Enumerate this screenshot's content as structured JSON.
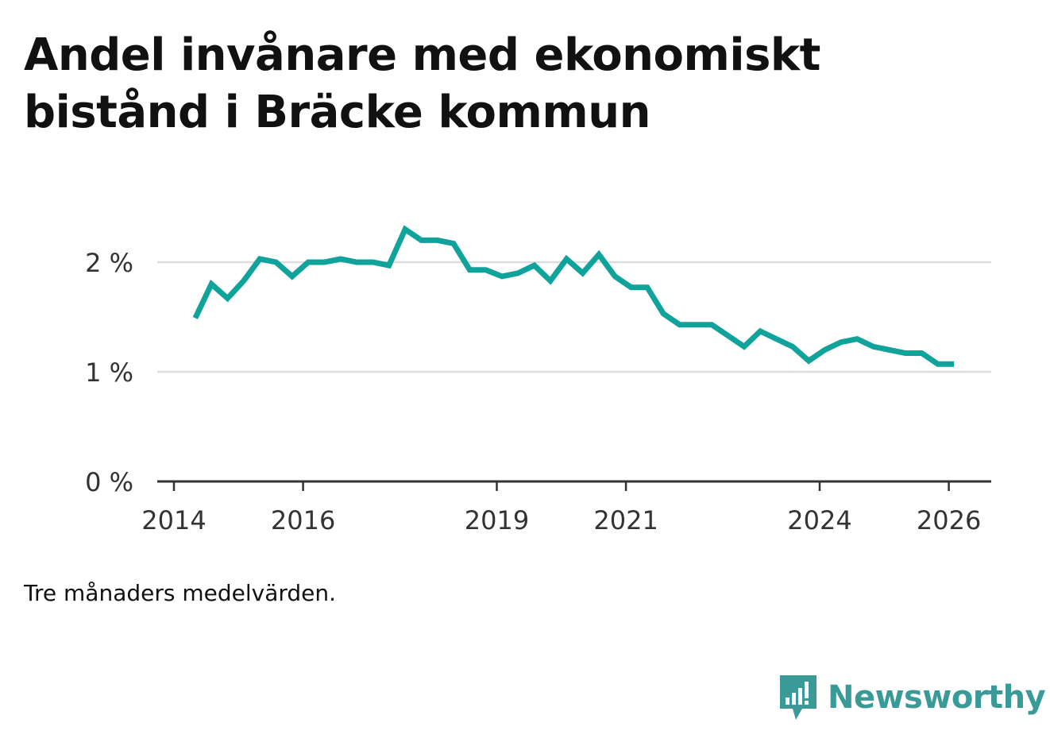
{
  "title": "Andel invånare med ekonomiskt bistånd i Bräcke kommun",
  "note": "Tre månaders medelvärden.",
  "brand": {
    "name": "Newsworthy",
    "icon": "newsworthy-logo-icon",
    "color": "#3a9a98"
  },
  "colors": {
    "line": "#0fa39b",
    "grid": "#dddddd",
    "axis": "#333333",
    "text": "#333333"
  },
  "chart_data": {
    "type": "line",
    "title": "Andel invånare med ekonomiskt bistånd i Bräcke kommun",
    "xlabel": "",
    "ylabel": "",
    "xlim": [
      2013.85,
      2026.7
    ],
    "ylim": [
      0,
      2.3
    ],
    "y_ticks": [
      0,
      1,
      2
    ],
    "y_tick_labels": [
      "0 %",
      "1 %",
      "2 %"
    ],
    "x_ticks": [
      2014,
      2016,
      2019,
      2021,
      2024,
      2026
    ],
    "x_tick_labels": [
      "2014",
      "2016",
      "2019",
      "2021",
      "2024",
      "2026"
    ],
    "grid": true,
    "legend": "none",
    "series": [
      {
        "x": [
          2014.33,
          2014.58,
          2014.83,
          2015.08,
          2015.33,
          2015.58,
          2015.83,
          2016.08,
          2016.33,
          2016.58,
          2016.83,
          2017.08,
          2017.33,
          2017.58,
          2017.83,
          2018.08,
          2018.33,
          2018.58,
          2018.83,
          2019.08,
          2019.33,
          2019.58,
          2019.83,
          2020.08,
          2020.33,
          2020.58,
          2020.83,
          2021.08,
          2021.33,
          2021.58,
          2021.83,
          2022.08,
          2022.33,
          2022.58,
          2022.83,
          2023.08,
          2023.33,
          2023.58,
          2023.83,
          2024.08,
          2024.33,
          2024.58,
          2024.83,
          2025.08,
          2025.33,
          2025.58,
          2025.83,
          2026.08
        ],
        "values": [
          1.49,
          1.8,
          1.67,
          1.83,
          2.03,
          2.0,
          1.87,
          2.0,
          2.0,
          2.03,
          2.0,
          2.0,
          1.97,
          2.3,
          2.2,
          2.2,
          2.17,
          1.93,
          1.93,
          1.87,
          1.9,
          1.97,
          1.83,
          2.03,
          1.9,
          2.07,
          1.87,
          1.77,
          1.77,
          1.53,
          1.43,
          1.43,
          1.43,
          1.33,
          1.23,
          1.37,
          1.3,
          1.23,
          1.1,
          1.2,
          1.27,
          1.3,
          1.23,
          1.2,
          1.17,
          1.17,
          1.07,
          1.07
        ]
      }
    ]
  }
}
